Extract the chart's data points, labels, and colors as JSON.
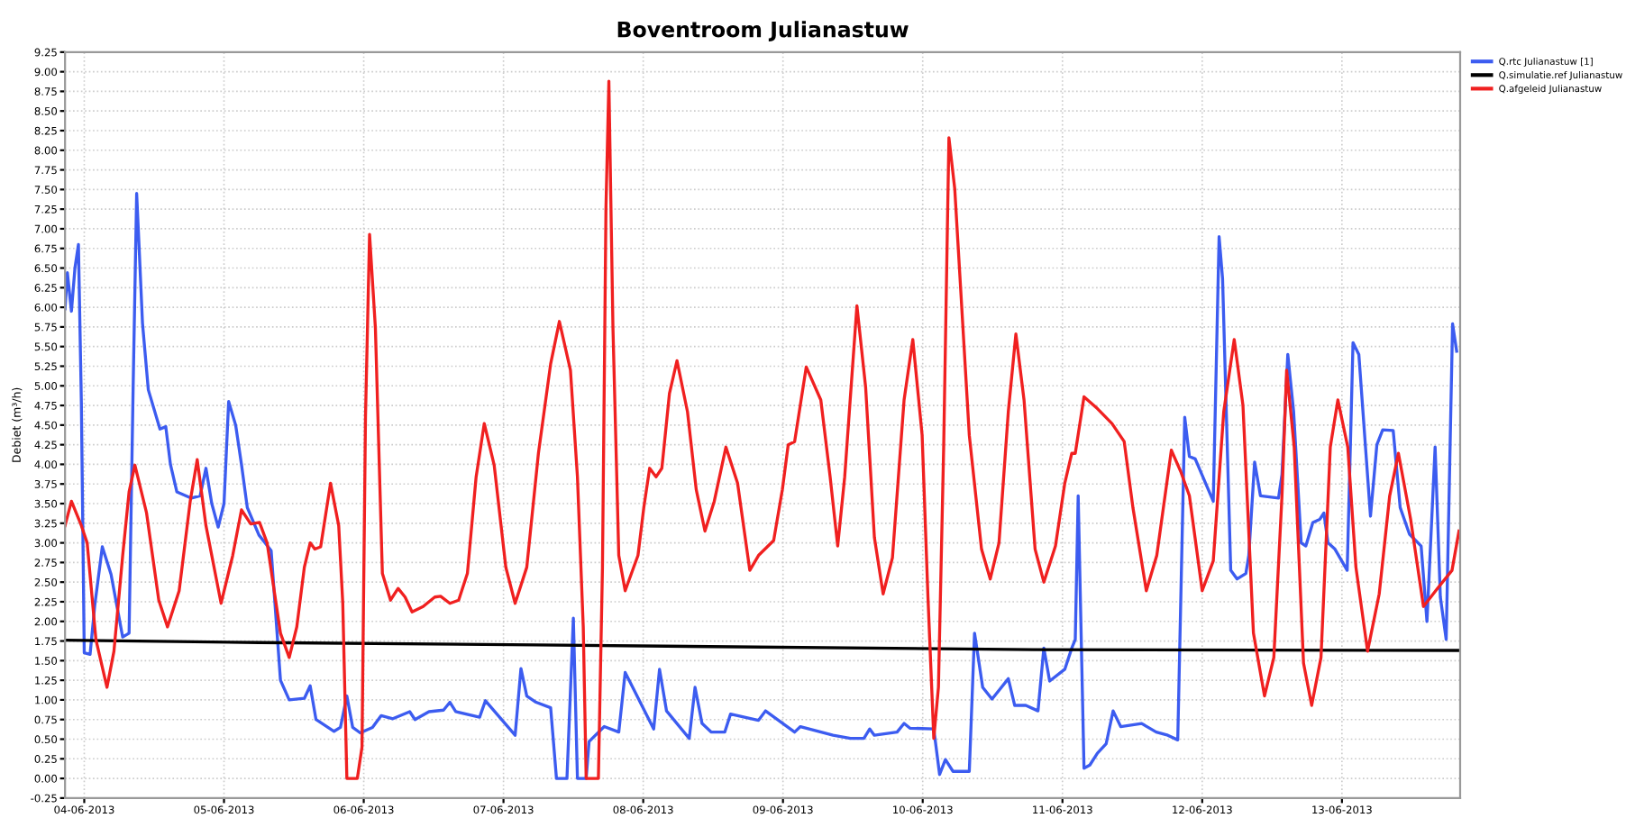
{
  "chart_data": {
    "type": "line",
    "title": "Boventroom Julianastuw",
    "ylabel": "Debiet (m³/h)",
    "xlim": [
      "2013-06-03T20:42",
      "2013-06-13T20:18"
    ],
    "xticks": [
      {
        "value": "2013-06-04",
        "label": "04-06-2013"
      },
      {
        "value": "2013-06-05",
        "label": "05-06-2013"
      },
      {
        "value": "2013-06-06",
        "label": "06-06-2013"
      },
      {
        "value": "2013-06-07",
        "label": "07-06-2013"
      },
      {
        "value": "2013-06-08",
        "label": "08-06-2013"
      },
      {
        "value": "2013-06-09",
        "label": "09-06-2013"
      },
      {
        "value": "2013-06-10",
        "label": "10-06-2013"
      },
      {
        "value": "2013-06-11",
        "label": "11-06-2013"
      },
      {
        "value": "2013-06-12",
        "label": "12-06-2013"
      },
      {
        "value": "2013-06-13",
        "label": "13-06-2013"
      }
    ],
    "ylim": [
      -0.25,
      9.25
    ],
    "yticks": [
      {
        "value": -0.25,
        "label": "-0.25"
      },
      {
        "value": 0,
        "label": "0.00"
      },
      {
        "value": 0.25,
        "label": "0.25"
      },
      {
        "value": 0.5,
        "label": "0.50"
      },
      {
        "value": 0.75,
        "label": "0.75"
      },
      {
        "value": 1,
        "label": "1.00"
      },
      {
        "value": 1.25,
        "label": "1.25"
      },
      {
        "value": 1.5,
        "label": "1.50"
      },
      {
        "value": 1.75,
        "label": "1.75"
      },
      {
        "value": 2,
        "label": "2.00"
      },
      {
        "value": 2.25,
        "label": "2.25"
      },
      {
        "value": 2.5,
        "label": "2.50"
      },
      {
        "value": 2.75,
        "label": "2.75"
      },
      {
        "value": 3,
        "label": "3.00"
      },
      {
        "value": 3.25,
        "label": "3.25"
      },
      {
        "value": 3.5,
        "label": "3.50"
      },
      {
        "value": 3.75,
        "label": "3.75"
      },
      {
        "value": 4,
        "label": "4.00"
      },
      {
        "value": 4.25,
        "label": "4.25"
      },
      {
        "value": 4.5,
        "label": "4.50"
      },
      {
        "value": 4.75,
        "label": "4.75"
      },
      {
        "value": 5,
        "label": "5.00"
      },
      {
        "value": 5.25,
        "label": "5.25"
      },
      {
        "value": 5.5,
        "label": "5.50"
      },
      {
        "value": 5.75,
        "label": "5.75"
      },
      {
        "value": 6,
        "label": "6.00"
      },
      {
        "value": 6.25,
        "label": "6.25"
      },
      {
        "value": 6.5,
        "label": "6.50"
      },
      {
        "value": 6.75,
        "label": "6.75"
      },
      {
        "value": 7,
        "label": "7.00"
      },
      {
        "value": 7.25,
        "label": "7.25"
      },
      {
        "value": 7.5,
        "label": "7.50"
      },
      {
        "value": 7.75,
        "label": "7.75"
      },
      {
        "value": 8,
        "label": "8.00"
      },
      {
        "value": 8.25,
        "label": "8.25"
      },
      {
        "value": 8.5,
        "label": "8.50"
      },
      {
        "value": 8.75,
        "label": "8.75"
      },
      {
        "value": 9,
        "label": "9.00"
      },
      {
        "value": 9.25,
        "label": "9.25"
      }
    ],
    "grid": true,
    "legend": "top right",
    "line_style": "solid",
    "marker": "none",
    "series": [
      {
        "name": "Q.rtc Julianastuw [1]",
        "color": "#3c5cf0",
        "x": [
          "2013-06-03T20:42",
          "2013-06-03T21:06",
          "2013-06-03T21:48",
          "2013-06-03T22:24",
          "2013-06-03T23:00",
          "2013-06-03T23:30",
          "2013-06-04T00:00",
          "2013-06-04T01:00",
          "2013-06-04T01:48",
          "2013-06-04T03:06",
          "2013-06-04T04:36",
          "2013-06-04T05:36",
          "2013-06-04T06:36",
          "2013-06-04T07:42",
          "2013-06-04T08:24",
          "2013-06-04T09:00",
          "2013-06-04T09:24",
          "2013-06-04T10:00",
          "2013-06-04T11:00",
          "2013-06-04T13:00",
          "2013-06-04T14:00",
          "2013-06-04T14:48",
          "2013-06-04T15:54",
          "2013-06-04T18:24",
          "2013-06-04T19:54",
          "2013-06-04T20:54",
          "2013-06-04T21:54",
          "2013-06-04T23:00",
          "2013-06-05T00:00",
          "2013-06-05T00:48",
          "2013-06-05T02:00",
          "2013-06-05T03:00",
          "2013-06-05T04:00",
          "2013-06-05T06:00",
          "2013-06-05T08:06",
          "2013-06-05T09:42",
          "2013-06-05T11:12",
          "2013-06-05T13:48",
          "2013-06-05T14:48",
          "2013-06-05T15:48",
          "2013-06-05T18:54",
          "2013-06-05T20:00",
          "2013-06-05T21:06",
          "2013-06-05T22:06",
          "2013-06-05T23:24",
          "2013-06-06T01:30",
          "2013-06-06T03:00",
          "2013-06-06T05:00",
          "2013-06-06T07:54",
          "2013-06-06T08:48",
          "2013-06-06T11:12",
          "2013-06-06T13:42",
          "2013-06-06T14:48",
          "2013-06-06T15:48",
          "2013-06-06T19:54",
          "2013-06-06T20:54",
          "2013-06-07T02:00",
          "2013-06-07T03:00",
          "2013-06-07T04:00",
          "2013-06-07T05:36",
          "2013-06-07T08:06",
          "2013-06-07T09:06",
          "2013-06-07T10:54",
          "2013-06-07T12:00",
          "2013-06-07T12:42",
          "2013-06-07T14:12",
          "2013-06-07T14:42",
          "2013-06-07T17:18",
          "2013-06-07T19:48",
          "2013-06-07T20:54",
          "2013-06-08T01:48",
          "2013-06-08T02:48",
          "2013-06-08T04:00",
          "2013-06-08T07:54",
          "2013-06-08T08:54",
          "2013-06-08T10:06",
          "2013-06-08T11:42",
          "2013-06-08T14:00",
          "2013-06-08T15:00",
          "2013-06-08T19:48",
          "2013-06-08T21:00",
          "2013-06-09T02:00",
          "2013-06-09T03:00",
          "2013-06-09T08:36",
          "2013-06-09T11:36",
          "2013-06-09T13:54",
          "2013-06-09T14:54",
          "2013-06-09T15:42",
          "2013-06-09T19:36",
          "2013-06-09T20:48",
          "2013-06-09T21:48",
          "2013-06-10T01:54",
          "2013-06-10T02:54",
          "2013-06-10T03:54",
          "2013-06-10T05:12",
          "2013-06-10T08:00",
          "2013-06-10T08:54",
          "2013-06-10T10:18",
          "2013-06-10T11:54",
          "2013-06-10T14:42",
          "2013-06-10T15:48",
          "2013-06-10T17:42",
          "2013-06-10T19:48",
          "2013-06-10T20:48",
          "2013-06-10T21:48",
          "2013-06-11T00:24",
          "2013-06-11T01:36",
          "2013-06-11T02:12",
          "2013-06-11T02:42",
          "2013-06-11T03:42",
          "2013-06-11T04:42",
          "2013-06-11T06:00",
          "2013-06-11T07:30",
          "2013-06-11T08:42",
          "2013-06-11T10:00",
          "2013-06-11T13:36",
          "2013-06-11T16:06",
          "2013-06-11T18:06",
          "2013-06-11T19:48",
          "2013-06-11T21:00",
          "2013-06-11T21:48",
          "2013-06-11T22:48",
          "2013-06-12T01:54",
          "2013-06-12T02:54",
          "2013-06-12T03:30",
          "2013-06-12T04:54",
          "2013-06-12T06:00",
          "2013-06-12T07:30",
          "2013-06-12T08:00",
          "2013-06-12T09:00",
          "2013-06-12T10:00",
          "2013-06-12T13:06",
          "2013-06-12T13:42",
          "2013-06-12T14:42",
          "2013-06-12T15:42",
          "2013-06-12T17:00",
          "2013-06-12T17:48",
          "2013-06-12T19:00",
          "2013-06-12T20:12",
          "2013-06-12T20:54",
          "2013-06-12T21:36",
          "2013-06-12T22:48",
          "2013-06-13T00:54",
          "2013-06-13T01:54",
          "2013-06-13T02:54",
          "2013-06-13T04:54",
          "2013-06-13T06:00",
          "2013-06-13T07:00",
          "2013-06-13T08:48",
          "2013-06-13T10:00",
          "2013-06-13T11:36",
          "2013-06-13T13:36",
          "2013-06-13T14:36",
          "2013-06-13T16:00",
          "2013-06-13T16:54",
          "2013-06-13T17:54",
          "2013-06-13T19:00",
          "2013-06-13T19:42"
        ],
        "values": [
          5.98,
          6.44,
          5.95,
          6.5,
          6.8,
          4.8,
          1.6,
          1.58,
          2.2,
          2.95,
          2.6,
          2.2,
          1.8,
          1.85,
          5.0,
          7.45,
          6.8,
          5.8,
          4.95,
          4.45,
          4.48,
          4.0,
          3.65,
          3.57,
          3.6,
          3.95,
          3.5,
          3.2,
          3.5,
          4.8,
          4.5,
          4.0,
          3.45,
          3.1,
          2.9,
          1.25,
          1.0,
          1.02,
          1.18,
          0.75,
          0.6,
          0.65,
          1.05,
          0.65,
          0.58,
          0.65,
          0.8,
          0.76,
          0.85,
          0.75,
          0.85,
          0.87,
          0.97,
          0.85,
          0.78,
          0.99,
          0.55,
          1.4,
          1.05,
          0.97,
          0.9,
          0,
          0,
          2.04,
          0,
          0,
          0.47,
          0.66,
          0.59,
          1.35,
          0.63,
          1.39,
          0.86,
          0.51,
          1.16,
          0.7,
          0.59,
          0.59,
          0.82,
          0.74,
          0.86,
          0.59,
          0.66,
          0.55,
          0.51,
          0.51,
          0.63,
          0.55,
          0.59,
          0.7,
          0.64,
          0.63,
          0.05,
          0.24,
          0.09,
          0.09,
          1.85,
          1.16,
          1.01,
          1.27,
          0.93,
          0.93,
          0.86,
          1.66,
          1.24,
          1.39,
          1.66,
          1.77,
          3.6,
          0.13,
          0.17,
          0.32,
          0.44,
          0.86,
          0.66,
          0.7,
          0.59,
          0.55,
          0.49,
          4.6,
          4.1,
          4.07,
          3.53,
          6.9,
          6.36,
          2.65,
          2.54,
          2.61,
          2.84,
          4.03,
          3.6,
          3.57,
          3.87,
          5.4,
          4.67,
          3.0,
          2.96,
          3.26,
          3.3,
          3.38,
          3.0,
          2.92,
          2.65,
          5.55,
          5.4,
          3.34,
          4.25,
          4.44,
          4.43,
          3.45,
          3.11,
          2.96,
          2.0,
          4.22,
          2.31,
          1.77,
          5.79,
          5.44
        ]
      },
      {
        "name": "Q.simulatie.ref Julianastuw",
        "color": "#000000",
        "x": [
          "2013-06-03T20:42",
          "2013-06-05T06:00",
          "2013-06-07T05:36",
          "2013-06-10T19:00",
          "2013-06-13T20:18"
        ],
        "values": [
          1.76,
          1.73,
          1.7,
          1.64,
          1.63
        ]
      },
      {
        "name": "Q.afgeleid Julianastuw",
        "color": "#f02020",
        "x": [
          "2013-06-03T20:42",
          "2013-06-03T21:48",
          "2013-06-03T23:30",
          "2013-06-04T00:30",
          "2013-06-04T02:00",
          "2013-06-04T03:54",
          "2013-06-04T05:06",
          "2013-06-04T06:36",
          "2013-06-04T07:42",
          "2013-06-04T08:42",
          "2013-06-04T10:42",
          "2013-06-04T12:48",
          "2013-06-04T14:18",
          "2013-06-04T16:18",
          "2013-06-04T18:12",
          "2013-06-04T19:24",
          "2013-06-04T20:54",
          "2013-06-04T23:30",
          "2013-06-05T01:30",
          "2013-06-05T03:00",
          "2013-06-05T04:36",
          "2013-06-05T06:06",
          "2013-06-05T07:24",
          "2013-06-05T09:42",
          "2013-06-05T11:12",
          "2013-06-05T12:30",
          "2013-06-05T13:48",
          "2013-06-05T14:48",
          "2013-06-05T15:36",
          "2013-06-05T16:36",
          "2013-06-05T18:18",
          "2013-06-05T19:42",
          "2013-06-05T20:24",
          "2013-06-05T21:06",
          "2013-06-05T22:54",
          "2013-06-05T23:42",
          "2013-06-06T00:18",
          "2013-06-06T01:00",
          "2013-06-06T02:00",
          "2013-06-06T03:12",
          "2013-06-06T04:36",
          "2013-06-06T05:54",
          "2013-06-06T07:06",
          "2013-06-06T08:18",
          "2013-06-06T10:12",
          "2013-06-06T12:12",
          "2013-06-06T13:12",
          "2013-06-06T14:48",
          "2013-06-06T16:18",
          "2013-06-06T17:48",
          "2013-06-06T19:18",
          "2013-06-06T20:42",
          "2013-06-06T22:24",
          "2013-06-07T00:24",
          "2013-06-07T02:00",
          "2013-06-07T04:00",
          "2013-06-07T06:00",
          "2013-06-07T08:06",
          "2013-06-07T09:36",
          "2013-06-07T11:30",
          "2013-06-07T12:42",
          "2013-06-07T13:42",
          "2013-06-07T14:12",
          "2013-06-07T16:18",
          "2013-06-07T17:00",
          "2013-06-07T17:36",
          "2013-06-07T18:06",
          "2013-06-07T18:48",
          "2013-06-07T19:48",
          "2013-06-07T20:54",
          "2013-06-07T23:06",
          "2013-06-08T00:06",
          "2013-06-08T01:06",
          "2013-06-08T02:12",
          "2013-06-08T03:12",
          "2013-06-08T04:30",
          "2013-06-08T05:48",
          "2013-06-08T07:36",
          "2013-06-08T09:06",
          "2013-06-08T10:36",
          "2013-06-08T12:12",
          "2013-06-08T14:12",
          "2013-06-08T16:12",
          "2013-06-08T18:18",
          "2013-06-08T19:48",
          "2013-06-08T22:24",
          "2013-06-08T23:54",
          "2013-06-09T00:54",
          "2013-06-09T02:00",
          "2013-06-09T04:00",
          "2013-06-09T06:30",
          "2013-06-09T08:06",
          "2013-06-09T09:24",
          "2013-06-09T10:36",
          "2013-06-09T12:42",
          "2013-06-09T14:12",
          "2013-06-09T15:42",
          "2013-06-09T17:12",
          "2013-06-09T18:48",
          "2013-06-09T20:48",
          "2013-06-09T22:18",
          "2013-06-09T23:54",
          "2013-06-10T00:54",
          "2013-06-10T01:54",
          "2013-06-10T02:42",
          "2013-06-10T03:36",
          "2013-06-10T04:30",
          "2013-06-10T05:30",
          "2013-06-10T08:00",
          "2013-06-10T10:06",
          "2013-06-10T11:36",
          "2013-06-10T13:06",
          "2013-06-10T14:42",
          "2013-06-10T16:00",
          "2013-06-10T17:24",
          "2013-06-10T19:18",
          "2013-06-10T20:48",
          "2013-06-10T22:48",
          "2013-06-11T00:24",
          "2013-06-11T01:36",
          "2013-06-11T02:12",
          "2013-06-11T03:42",
          "2013-06-11T06:00",
          "2013-06-11T08:30",
          "2013-06-11T10:36",
          "2013-06-11T12:06",
          "2013-06-11T14:24",
          "2013-06-11T16:12",
          "2013-06-11T18:42",
          "2013-06-11T20:18",
          "2013-06-11T21:48",
          "2013-06-12T00:00",
          "2013-06-12T01:54",
          "2013-06-12T03:42",
          "2013-06-12T05:30",
          "2013-06-12T07:00",
          "2013-06-12T08:48",
          "2013-06-12T10:42",
          "2013-06-12T12:18",
          "2013-06-12T13:42",
          "2013-06-12T14:30",
          "2013-06-12T15:48",
          "2013-06-12T17:24",
          "2013-06-12T18:48",
          "2013-06-12T20:24",
          "2013-06-12T22:00",
          "2013-06-12T23:18",
          "2013-06-13T01:00",
          "2013-06-13T02:24",
          "2013-06-13T04:24",
          "2013-06-13T06:24",
          "2013-06-13T08:12",
          "2013-06-13T09:42",
          "2013-06-13T11:48",
          "2013-06-13T14:00",
          "2013-06-13T16:24",
          "2013-06-13T18:54",
          "2013-06-13T20:06"
        ],
        "values": [
          3.22,
          3.53,
          3.22,
          3.0,
          1.77,
          1.16,
          1.62,
          2.84,
          3.65,
          3.99,
          3.38,
          2.27,
          1.93,
          2.39,
          3.53,
          4.06,
          3.22,
          2.23,
          2.84,
          3.42,
          3.24,
          3.26,
          3.0,
          1.85,
          1.54,
          1.93,
          2.69,
          3.0,
          2.92,
          2.95,
          3.76,
          3.22,
          2.23,
          0,
          0,
          0.4,
          4.6,
          6.93,
          5.74,
          2.61,
          2.27,
          2.42,
          2.31,
          2.12,
          2.19,
          2.31,
          2.32,
          2.23,
          2.27,
          2.61,
          3.84,
          4.52,
          3.99,
          2.69,
          2.23,
          2.69,
          4.14,
          5.28,
          5.82,
          5.2,
          3.84,
          1.93,
          0,
          0,
          2.69,
          7.27,
          8.88,
          5.74,
          2.84,
          2.39,
          2.84,
          3.45,
          3.95,
          3.84,
          3.95,
          4.9,
          5.32,
          4.67,
          3.68,
          3.15,
          3.53,
          4.22,
          3.76,
          2.65,
          2.84,
          3.03,
          3.68,
          4.25,
          4.29,
          5.24,
          4.82,
          3.84,
          2.96,
          3.84,
          6.02,
          4.98,
          3.07,
          2.35,
          2.81,
          4.82,
          5.59,
          4.37,
          2.31,
          0.51,
          1.16,
          4.22,
          8.16,
          7.51,
          4.37,
          2.92,
          2.54,
          3.0,
          4.67,
          5.66,
          4.82,
          2.92,
          2.5,
          2.96,
          3.76,
          4.14,
          4.14,
          4.86,
          4.71,
          4.52,
          4.29,
          3.45,
          2.39,
          2.84,
          4.18,
          3.91,
          3.6,
          2.39,
          2.77,
          4.67,
          5.59,
          4.75,
          1.85,
          1.05,
          1.54,
          3.6,
          5.2,
          4.22,
          1.47,
          0.93,
          1.54,
          4.22,
          4.82,
          4.22,
          2.69,
          1.62,
          2.35,
          3.6,
          4.14,
          3.3,
          2.19,
          2.42,
          2.65,
          3.15
        ]
      }
    ]
  }
}
